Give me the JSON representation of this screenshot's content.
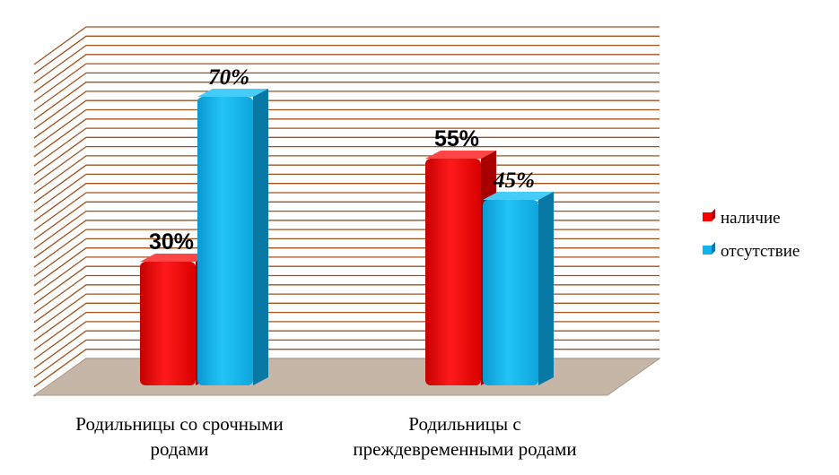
{
  "chart_data": {
    "type": "bar",
    "categories": [
      [
        "Родильницы со срочными",
        "родами"
      ],
      [
        "Родильницы с",
        "преждевременными родами"
      ]
    ],
    "series": [
      {
        "name": "наличие",
        "values": [
          30,
          55
        ],
        "labels": [
          "30%",
          "55%"
        ],
        "color": "#FF0000"
      },
      {
        "name": "отсутствие",
        "values": [
          70,
          45
        ],
        "labels": [
          "70%",
          "45%"
        ],
        "color": "#0FB4EC"
      }
    ],
    "ylim": [
      0,
      100
    ],
    "unit": "%",
    "grid": true,
    "three_d": true,
    "legend_position": "right",
    "colors": {
      "grid_lines": "#A0521E",
      "floor": "#C5B6A8"
    }
  }
}
